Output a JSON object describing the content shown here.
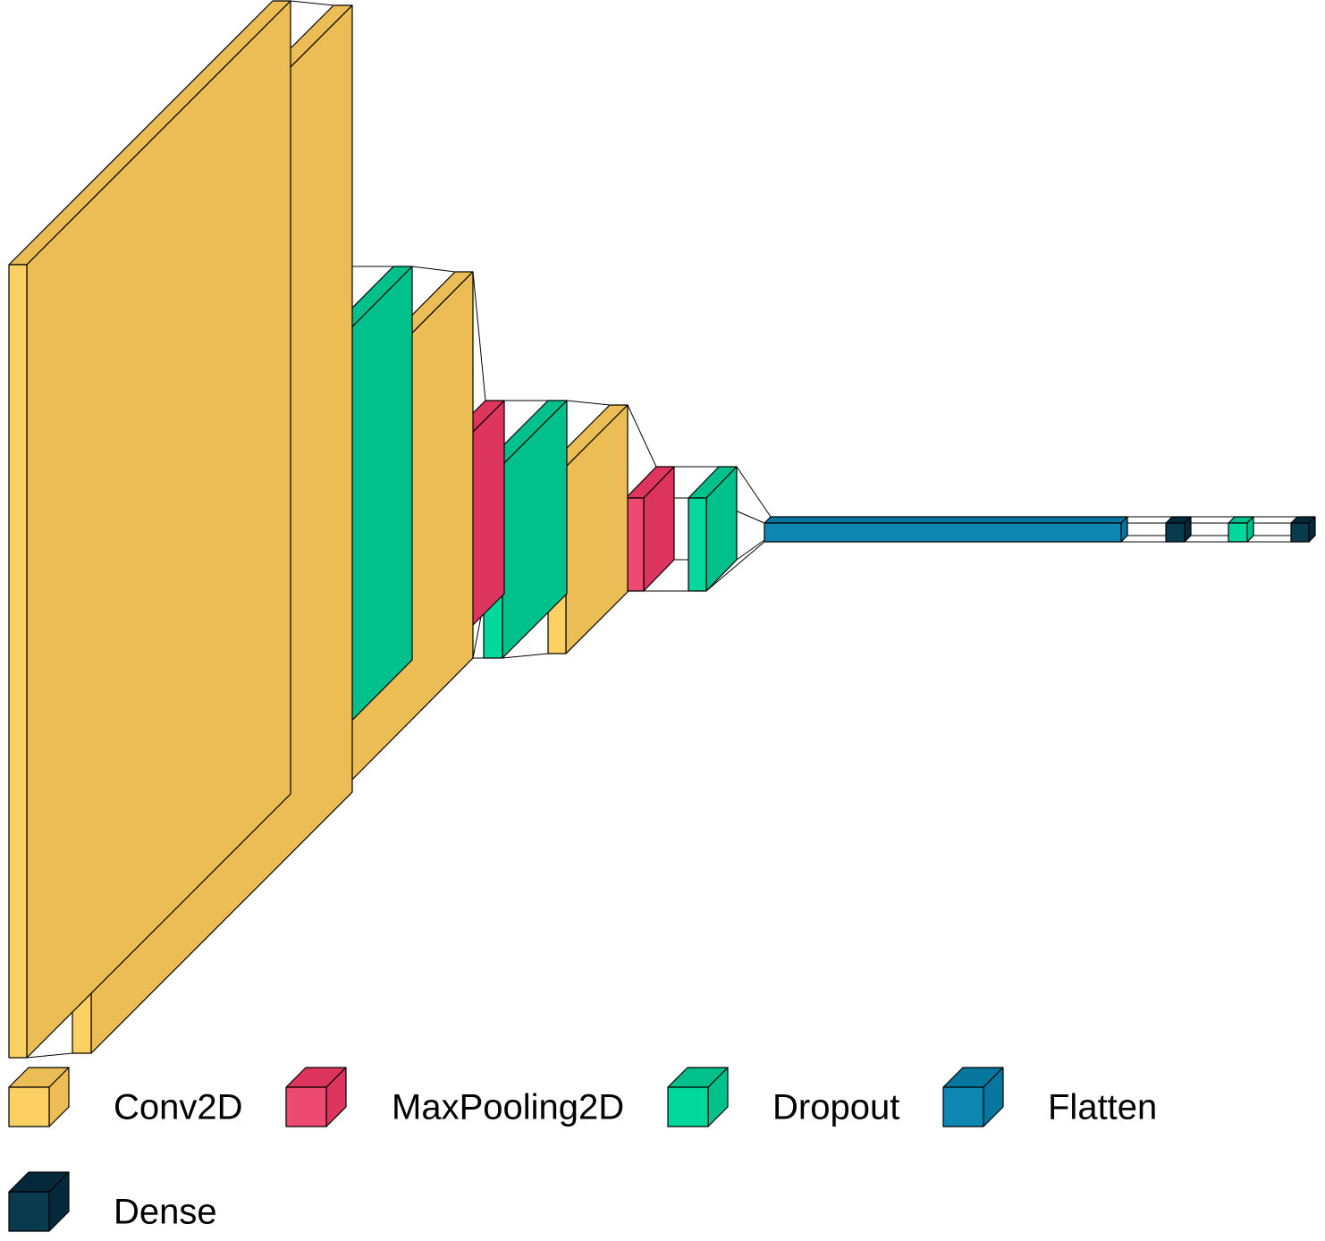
{
  "layer_types": {
    "conv2d": {
      "label": "Conv2D",
      "front": "#fdd063",
      "top": "#ecbd55",
      "side": "#ecbd55"
    },
    "maxpool": {
      "label": "MaxPooling2D",
      "front": "#ee4970",
      "top": "#dd355d",
      "side": "#dd355d"
    },
    "dropout": {
      "label": "Dropout",
      "front": "#02d89b",
      "top": "#00c08c",
      "side": "#00c08c"
    },
    "flatten": {
      "label": "Flatten",
      "front": "#0e87b2",
      "top": "#06769e",
      "side": "#06769e"
    },
    "dense": {
      "label": "Dense",
      "front": "#093a4e",
      "top": "#05293a",
      "side": "#05293a"
    }
  },
  "layers": [
    {
      "type": "conv2d"
    },
    {
      "type": "conv2d"
    },
    {
      "type": "maxpool"
    },
    {
      "type": "dropout"
    },
    {
      "type": "conv2d"
    },
    {
      "type": "maxpool"
    },
    {
      "type": "dropout"
    },
    {
      "type": "conv2d"
    },
    {
      "type": "maxpool"
    },
    {
      "type": "dropout"
    },
    {
      "type": "flatten"
    },
    {
      "type": "dense"
    },
    {
      "type": "dropout"
    },
    {
      "type": "dense"
    }
  ],
  "legend": [
    {
      "type": "conv2d"
    },
    {
      "type": "maxpool"
    },
    {
      "type": "dropout"
    },
    {
      "type": "flatten"
    },
    {
      "type": "dense"
    }
  ]
}
